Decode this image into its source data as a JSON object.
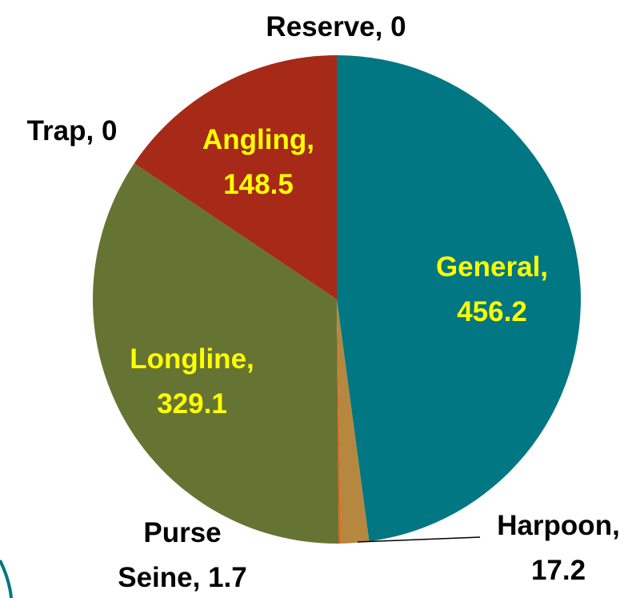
{
  "chart_data": {
    "type": "pie",
    "values": [
      456.2,
      17.2,
      1.7,
      329.1,
      0,
      148.5,
      0
    ],
    "value_labels": [
      [
        "General,",
        "456.2"
      ],
      [
        "Harpoon,",
        "17.2"
      ],
      [
        "Purse",
        "Seine, 1.7"
      ],
      [
        "Longline,",
        "329.1"
      ],
      [
        "Trap, 0"
      ],
      [
        "Angling,",
        "148.5"
      ],
      [
        "Reserve, 0"
      ]
    ],
    "colors": [
      "#007782",
      "#b5873f",
      "#e06a1e",
      "#667433",
      "#7f7f7f",
      "#a62a17",
      "#4a6fa5"
    ]
  }
}
